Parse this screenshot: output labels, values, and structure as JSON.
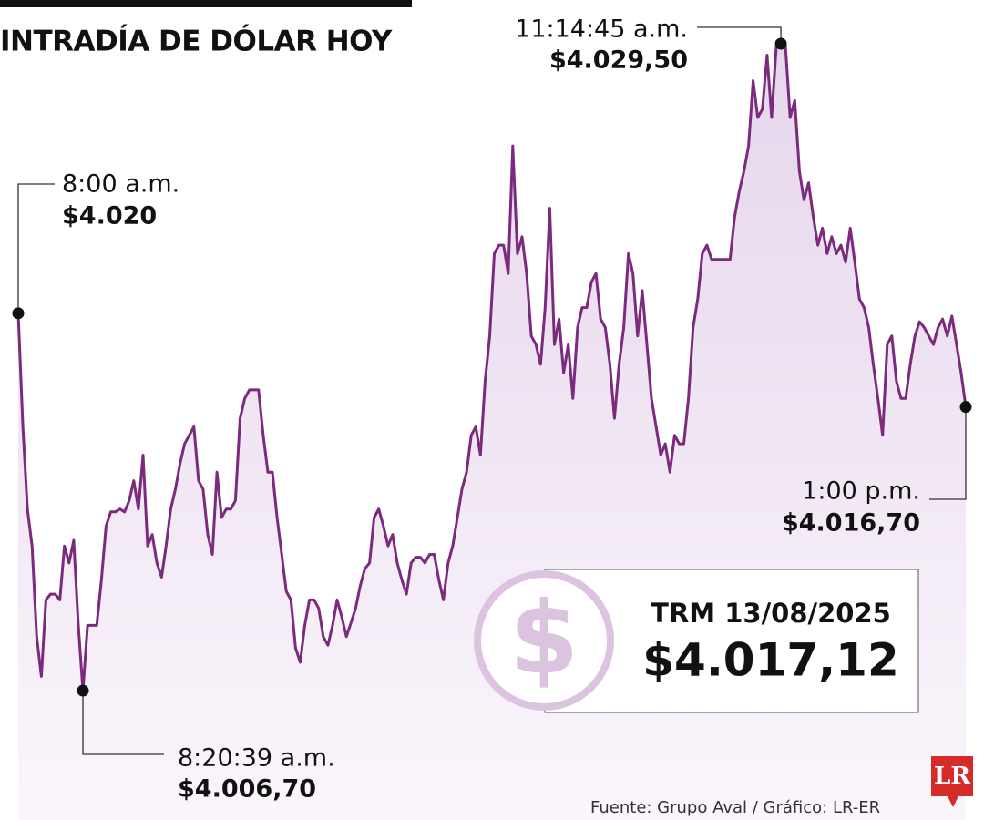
{
  "chart_data": {
    "type": "area",
    "title": "INTRADÍA DE DÓLAR HOY",
    "color": "#7b2a7e",
    "values": [
      4020.0,
      4016.0,
      4013.1,
      4011.8,
      4008.6,
      4007.2,
      4009.9,
      4010.1,
      4010.1,
      4009.9,
      4011.8,
      4011.2,
      4012.0,
      4009.0,
      4006.7,
      4009.0,
      4009.0,
      4009.0,
      4010.6,
      4012.5,
      4013.0,
      4013.0,
      4013.1,
      4013.0,
      4013.4,
      4014.1,
      4013.1,
      4015.0,
      4011.8,
      4012.2,
      4011.2,
      4010.7,
      4011.8,
      4013.1,
      4013.8,
      4014.7,
      4015.4,
      4015.7,
      4016.0,
      4014.1,
      4013.8,
      4012.2,
      4011.5,
      4014.4,
      4012.8,
      4013.1,
      4013.1,
      4013.4,
      4016.3,
      4017.0,
      4017.3,
      4017.3,
      4017.3,
      4015.7,
      4014.4,
      4014.4,
      4012.8,
      4011.5,
      4010.2,
      4009.9,
      4008.2,
      4007.7,
      4009.0,
      4009.9,
      4009.9,
      4009.6,
      4008.6,
      4008.3,
      4009.0,
      4009.9,
      4009.3,
      4008.6,
      4009.1,
      4009.6,
      4010.4,
      4011.0,
      4011.2,
      4012.8,
      4013.1,
      4012.5,
      4011.8,
      4012.2,
      4011.2,
      4010.6,
      4010.1,
      4011.2,
      4011.4,
      4011.4,
      4011.2,
      4011.5,
      4011.5,
      4010.6,
      4009.9,
      4011.2,
      4011.8,
      4012.8,
      4013.8,
      4014.4,
      4015.7,
      4016.0,
      4015.0,
      4017.6,
      4019.2,
      4022.1,
      4022.4,
      4022.4,
      4021.4,
      4025.9,
      4022.1,
      4022.7,
      4021.4,
      4019.2,
      4018.9,
      4018.2,
      4020.2,
      4023.7,
      4018.9,
      4019.8,
      4017.9,
      4018.9,
      4017.0,
      4019.5,
      4020.2,
      4020.2,
      4021.1,
      4021.4,
      4019.8,
      4019.5,
      4018.2,
      4016.3,
      4018.2,
      4019.5,
      4022.1,
      4021.4,
      4019.2,
      4020.8,
      4018.9,
      4017.0,
      4016.0,
      4015.0,
      4015.4,
      4014.4,
      4015.7,
      4015.4,
      4015.4,
      4017.0,
      4019.5,
      4020.5,
      4022.1,
      4022.4,
      4021.9,
      4021.9,
      4021.9,
      4021.9,
      4021.9,
      4023.4,
      4024.3,
      4025.0,
      4025.9,
      4028.2,
      4026.9,
      4027.2,
      4029.1,
      4026.9,
      4029.4,
      4029.5,
      4029.4,
      4026.9,
      4027.5,
      4025.0,
      4024.0,
      4024.6,
      4023.4,
      4022.4,
      4023.0,
      4022.1,
      4022.7,
      4022.1,
      4022.4,
      4021.8,
      4023.0,
      4021.8,
      4020.5,
      4020.2,
      4019.5,
      4018.2,
      4017.0,
      4015.7,
      4018.9,
      4019.2,
      4017.6,
      4017.0,
      4017.0,
      4018.2,
      4019.2,
      4019.7,
      4019.5,
      4019.2,
      4018.9,
      4019.5,
      4019.8,
      4019.2,
      4019.9,
      4018.9,
      4017.9,
      4016.7
    ],
    "annotations": [
      {
        "time": "8:00 a.m.",
        "value": 4020,
        "label": "$4.020"
      },
      {
        "time": "8:20:39 a.m.",
        "value": 4006.7,
        "label": "$4.006,70"
      },
      {
        "time": "11:14:45 a.m.",
        "value": 4029.5,
        "label": "$4.029,50"
      },
      {
        "time": "1:00 p.m.",
        "value": 4016.7,
        "label": "$4.016,70"
      }
    ],
    "callout": {
      "label": "TRM 13/08/2025",
      "value": 4017.12,
      "value_label": "$4.017,12"
    },
    "source": "Fuente: Grupo Aval / Gráfico: LR-ER",
    "logo": "LR"
  }
}
